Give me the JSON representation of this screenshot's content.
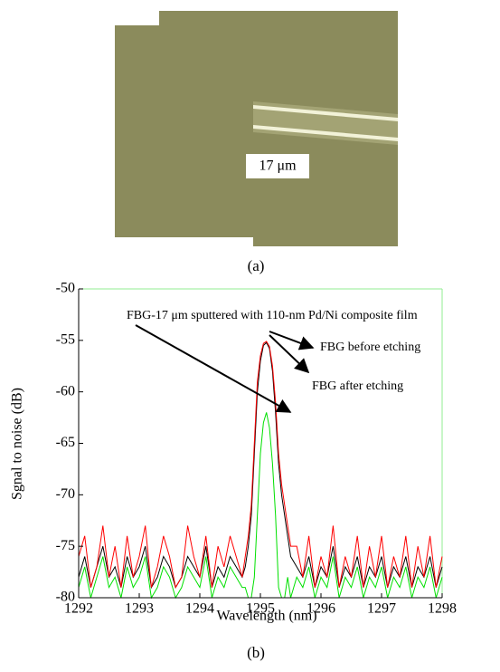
{
  "figure_a": {
    "scale_label": "17 μm",
    "caption": "(a)"
  },
  "chart_data": {
    "type": "line",
    "caption": "(b)",
    "x_label": "Wavelength (nm)",
    "y_label": "Sgnal to noise (dB)",
    "annotations": [
      "FBG-17 μm sputtered with 110-nm Pd/Ni composite film",
      "FBG before etching",
      "FBG after etching"
    ],
    "xlim": [
      1292,
      1298
    ],
    "xticks": [
      1292,
      1293,
      1294,
      1295,
      1296,
      1297,
      1298
    ],
    "ylim": [
      -80,
      -50
    ],
    "yticks": [
      -80,
      -75,
      -70,
      -65,
      -60,
      -55,
      -50
    ],
    "x": [
      1292.0,
      1292.1,
      1292.2,
      1292.3,
      1292.4,
      1292.5,
      1292.6,
      1292.7,
      1292.8,
      1292.9,
      1293.0,
      1293.1,
      1293.2,
      1293.3,
      1293.4,
      1293.5,
      1293.6,
      1293.7,
      1293.8,
      1293.9,
      1294.0,
      1294.1,
      1294.2,
      1294.3,
      1294.4,
      1294.5,
      1294.6,
      1294.7,
      1294.75,
      1294.8,
      1294.85,
      1294.9,
      1294.95,
      1295.0,
      1295.05,
      1295.1,
      1295.15,
      1295.2,
      1295.25,
      1295.3,
      1295.35,
      1295.4,
      1295.45,
      1295.5,
      1295.6,
      1295.7,
      1295.8,
      1295.9,
      1296.0,
      1296.1,
      1296.2,
      1296.3,
      1296.4,
      1296.5,
      1296.6,
      1296.7,
      1296.8,
      1296.9,
      1297.0,
      1297.1,
      1297.2,
      1297.3,
      1297.4,
      1297.5,
      1297.6,
      1297.7,
      1297.8,
      1297.9,
      1298.0
    ],
    "series": [
      {
        "color": "#000000",
        "values": [
          -78,
          -76,
          -79,
          -77,
          -75,
          -78,
          -77,
          -79,
          -76,
          -78,
          -77,
          -75,
          -79,
          -78,
          -76,
          -77,
          -79,
          -78,
          -76,
          -77,
          -78,
          -75,
          -79,
          -77,
          -78,
          -76,
          -77,
          -78,
          -77,
          -75,
          -72,
          -66,
          -60,
          -57,
          -55.5,
          -55.2,
          -55.8,
          -58,
          -62,
          -67,
          -70,
          -72,
          -74,
          -76,
          -77,
          -78,
          -76,
          -79,
          -77,
          -78,
          -75,
          -79,
          -77,
          -78,
          -76,
          -79,
          -77,
          -78,
          -76,
          -79,
          -77,
          -78,
          -76,
          -79,
          -77,
          -78,
          -76,
          -79,
          -77
        ]
      },
      {
        "color": "#ff0000",
        "values": [
          -76,
          -74,
          -79,
          -77,
          -73,
          -78,
          -75,
          -79,
          -74,
          -78,
          -76,
          -73,
          -79,
          -77,
          -74,
          -76,
          -79,
          -78,
          -73,
          -76,
          -78,
          -74,
          -79,
          -75,
          -77,
          -74,
          -76,
          -78,
          -76,
          -74,
          -71,
          -65,
          -59,
          -56.5,
          -55.3,
          -55.1,
          -55.6,
          -57.5,
          -61,
          -66,
          -69,
          -71,
          -73,
          -75,
          -75,
          -78,
          -74,
          -79,
          -76,
          -78,
          -73,
          -79,
          -76,
          -78,
          -74,
          -79,
          -75,
          -78,
          -74,
          -79,
          -76,
          -78,
          -74,
          -79,
          -75,
          -78,
          -74,
          -79,
          -76
        ]
      },
      {
        "color": "#00e000",
        "values": [
          -79,
          -77,
          -80,
          -78,
          -76,
          -79,
          -78,
          -80,
          -77,
          -79,
          -78,
          -76,
          -80,
          -79,
          -77,
          -78,
          -80,
          -79,
          -77,
          -78,
          -79,
          -76,
          -80,
          -78,
          -79,
          -77,
          -78,
          -79,
          -79,
          -80,
          -80,
          -78,
          -72,
          -66,
          -63,
          -62,
          -63.5,
          -67,
          -72,
          -79,
          -80,
          -80,
          -78,
          -80,
          -78,
          -79,
          -77,
          -80,
          -78,
          -79,
          -76,
          -80,
          -78,
          -79,
          -77,
          -80,
          -78,
          -79,
          -77,
          -80,
          -78,
          -79,
          -77,
          -80,
          -78,
          -79,
          -77,
          -80,
          -78
        ]
      }
    ]
  }
}
